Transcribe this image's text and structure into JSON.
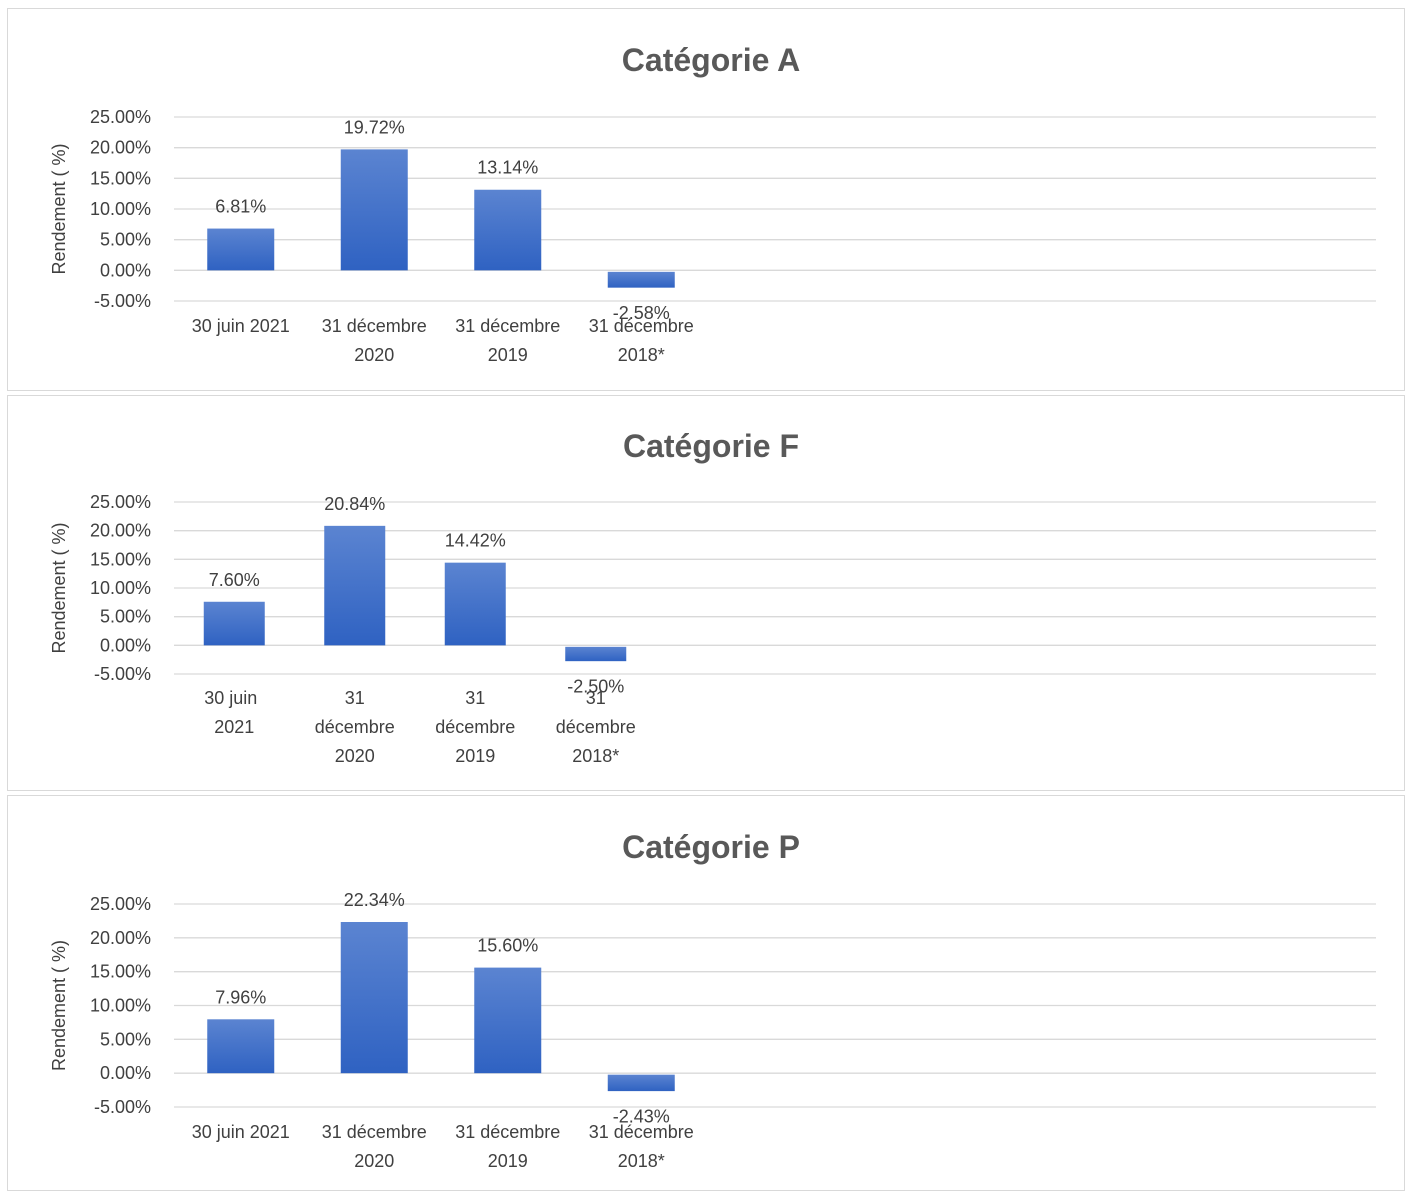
{
  "chart_data": [
    {
      "type": "bar",
      "title": "Catégorie A",
      "ylabel": "Rendement ( %)",
      "xlabel": "",
      "categories": [
        "30 juin 2021",
        "31 décembre 2020",
        "31 décembre 2019",
        "31 décembre 2018*"
      ],
      "values": [
        6.81,
        19.72,
        13.14,
        -2.58
      ],
      "data_labels": [
        "6.81%",
        "19.72%",
        "13.14%",
        "-2.58%"
      ],
      "yticks": [
        "25.00%",
        "20.00%",
        "15.00%",
        "10.00%",
        "5.00%",
        "0.00%",
        "-5.00%"
      ],
      "ylim": [
        -5,
        25
      ],
      "grid": true,
      "bar_color": "#4472c4"
    },
    {
      "type": "bar",
      "title": "Catégorie F",
      "ylabel": "Rendement ( %)",
      "xlabel": "",
      "categories": [
        "30 juin 2021",
        "31 décembre 2020",
        "31 décembre 2019",
        "31 décembre 2018*"
      ],
      "values": [
        7.6,
        20.84,
        14.42,
        -2.5
      ],
      "data_labels": [
        "7.60%",
        "20.84%",
        "14.42%",
        "-2.50%"
      ],
      "yticks": [
        "25.00%",
        "20.00%",
        "15.00%",
        "10.00%",
        "5.00%",
        "0.00%",
        "-5.00%"
      ],
      "ylim": [
        -5,
        25
      ],
      "grid": true,
      "bar_color": "#4472c4"
    },
    {
      "type": "bar",
      "title": "Catégorie P",
      "ylabel": "Rendement ( %)",
      "xlabel": "",
      "categories": [
        "30 juin 2021",
        "31 décembre 2020",
        "31 décembre 2019",
        "31 décembre 2018*"
      ],
      "values": [
        7.96,
        22.34,
        15.6,
        -2.43
      ],
      "data_labels": [
        "7.96%",
        "22.34%",
        "15.60%",
        "-2.43%"
      ],
      "yticks": [
        "25.00%",
        "20.00%",
        "15.00%",
        "10.00%",
        "5.00%",
        "0.00%",
        "-5.00%"
      ],
      "ylim": [
        -5,
        25
      ],
      "grid": true,
      "bar_color": "#4472c4"
    }
  ]
}
